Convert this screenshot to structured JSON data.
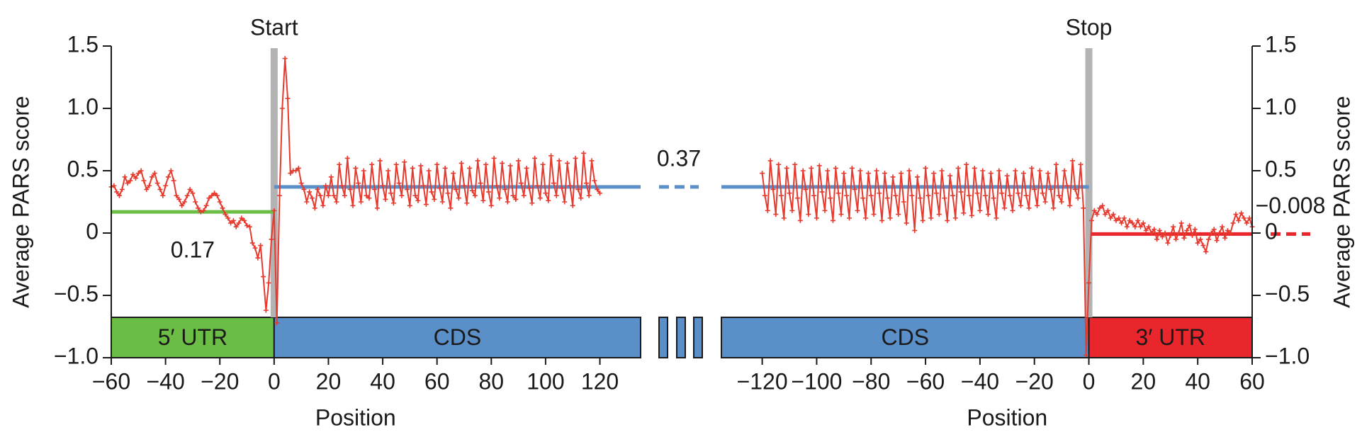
{
  "chart_data": [
    {
      "type": "line",
      "xlabel": "Position",
      "ylabel": "Average PARS score",
      "y_axis_side": "left",
      "color": "#e63a2e",
      "marker": {
        "x": 0,
        "label": "Start"
      },
      "xlim": [
        -60,
        135
      ],
      "ylim": [
        -1.0,
        1.5
      ],
      "xticks": [
        {
          "value": -60,
          "label": "−60"
        },
        {
          "value": -40,
          "label": "−40"
        },
        {
          "value": -20,
          "label": "−20"
        },
        0,
        20,
        40,
        60,
        80,
        100,
        120
      ],
      "yticks": [
        {
          "value": -1.0,
          "label": "−1.0"
        },
        {
          "value": -0.5,
          "label": "−0.5"
        },
        0,
        0.5,
        {
          "value": 1.0,
          "label": "1.0"
        },
        1.5
      ],
      "regions": [
        {
          "label": "5′ UTR",
          "color": "#6cbd45",
          "span": [
            -60,
            0
          ]
        },
        {
          "label": "CDS",
          "color": "#5b8fc7",
          "span": [
            0,
            135
          ]
        }
      ],
      "averages": [
        {
          "value": 0.17,
          "label": "0.17",
          "color": "#6cbd45",
          "span": [
            -60,
            0
          ]
        },
        {
          "value": 0.37,
          "label": "0.37",
          "color": "#5b8fc7",
          "span": [
            0,
            135
          ]
        }
      ],
      "x": [
        -60,
        -59,
        -58,
        -57,
        -56,
        -55,
        -54,
        -53,
        -52,
        -51,
        -50,
        -49,
        -48,
        -47,
        -46,
        -45,
        -44,
        -43,
        -42,
        -41,
        -40,
        -39,
        -38,
        -37,
        -36,
        -35,
        -34,
        -33,
        -32,
        -31,
        -30,
        -29,
        -28,
        -27,
        -26,
        -25,
        -24,
        -23,
        -22,
        -21,
        -20,
        -19,
        -18,
        -17,
        -16,
        -15,
        -14,
        -13,
        -12,
        -11,
        -10,
        -9,
        -8,
        -7,
        -6,
        -5,
        -4,
        -3,
        -2,
        -1,
        0,
        1,
        2,
        3,
        4,
        5,
        6,
        7,
        8,
        9,
        10,
        11,
        12,
        13,
        14,
        15,
        16,
        17,
        18,
        19,
        20,
        21,
        22,
        23,
        24,
        25,
        26,
        27,
        28,
        29,
        30,
        31,
        32,
        33,
        34,
        35,
        36,
        37,
        38,
        39,
        40,
        41,
        42,
        43,
        44,
        45,
        46,
        47,
        48,
        49,
        50,
        51,
        52,
        53,
        54,
        55,
        56,
        57,
        58,
        59,
        60,
        61,
        62,
        63,
        64,
        65,
        66,
        67,
        68,
        69,
        70,
        71,
        72,
        73,
        74,
        75,
        76,
        77,
        78,
        79,
        80,
        81,
        82,
        83,
        84,
        85,
        86,
        87,
        88,
        89,
        90,
        91,
        92,
        93,
        94,
        95,
        96,
        97,
        98,
        99,
        100,
        101,
        102,
        103,
        104,
        105,
        106,
        107,
        108,
        109,
        110,
        111,
        112,
        113,
        114,
        115,
        116,
        117,
        118,
        119,
        120
      ],
      "values": [
        0.37,
        0.38,
        0.33,
        0.3,
        0.35,
        0.45,
        0.4,
        0.42,
        0.47,
        0.44,
        0.48,
        0.5,
        0.42,
        0.35,
        0.38,
        0.45,
        0.48,
        0.4,
        0.35,
        0.3,
        0.38,
        0.45,
        0.5,
        0.42,
        0.3,
        0.27,
        0.22,
        0.25,
        0.3,
        0.35,
        0.32,
        0.25,
        0.2,
        0.17,
        0.18,
        0.22,
        0.28,
        0.3,
        0.32,
        0.3,
        0.25,
        0.2,
        0.15,
        0.12,
        0.08,
        0.1,
        0.05,
        0.08,
        0.12,
        0.1,
        0.06,
        0.05,
        -0.08,
        -0.12,
        -0.2,
        -0.1,
        -0.35,
        -0.62,
        -0.4,
        -0.05,
        0.18,
        -0.72,
        0.3,
        1.0,
        1.4,
        1.08,
        0.48,
        0.5,
        0.5,
        0.52,
        0.4,
        0.35,
        0.25,
        0.33,
        0.28,
        0.2,
        0.35,
        0.3,
        0.22,
        0.38,
        0.3,
        0.45,
        0.3,
        0.25,
        0.55,
        0.38,
        0.3,
        0.6,
        0.35,
        0.22,
        0.52,
        0.4,
        0.25,
        0.5,
        0.3,
        0.28,
        0.55,
        0.35,
        0.2,
        0.58,
        0.38,
        0.27,
        0.5,
        0.32,
        0.24,
        0.55,
        0.4,
        0.3,
        0.57,
        0.35,
        0.22,
        0.52,
        0.3,
        0.26,
        0.54,
        0.38,
        0.23,
        0.5,
        0.33,
        0.27,
        0.55,
        0.36,
        0.25,
        0.52,
        0.32,
        0.2,
        0.48,
        0.35,
        0.28,
        0.56,
        0.38,
        0.24,
        0.52,
        0.34,
        0.3,
        0.58,
        0.4,
        0.26,
        0.55,
        0.33,
        0.22,
        0.6,
        0.38,
        0.28,
        0.56,
        0.35,
        0.25,
        0.54,
        0.3,
        0.27,
        0.58,
        0.4,
        0.3,
        0.52,
        0.36,
        0.24,
        0.6,
        0.38,
        0.28,
        0.55,
        0.32,
        0.26,
        0.62,
        0.4,
        0.3,
        0.58,
        0.36,
        0.25,
        0.56,
        0.38,
        0.22,
        0.6,
        0.35,
        0.28,
        0.64,
        0.4,
        0.3,
        0.58,
        0.42,
        0.35,
        0.32
      ]
    },
    {
      "type": "line",
      "xlabel": "Position",
      "ylabel": "Average PARS score",
      "y_axis_side": "right",
      "color": "#e63a2e",
      "marker": {
        "x": 0,
        "label": "Stop"
      },
      "xlim": [
        -135,
        60
      ],
      "ylim": [
        -1.0,
        1.5
      ],
      "xticks": [
        {
          "value": -120,
          "label": "−120"
        },
        {
          "value": -100,
          "label": "−100"
        },
        {
          "value": -80,
          "label": "−80"
        },
        {
          "value": -60,
          "label": "−60"
        },
        {
          "value": -40,
          "label": "−40"
        },
        {
          "value": -20,
          "label": "−20"
        },
        0,
        20,
        40,
        60
      ],
      "yticks": [
        {
          "value": -1.0,
          "label": "−1.0"
        },
        {
          "value": -0.5,
          "label": "−0.5"
        },
        0,
        0.5,
        {
          "value": 1.0,
          "label": "1.0"
        },
        1.5
      ],
      "regions": [
        {
          "label": "CDS",
          "color": "#5b8fc7",
          "span": [
            -135,
            0
          ]
        },
        {
          "label": "3′ UTR",
          "color": "#e8262b",
          "span": [
            0,
            60
          ]
        }
      ],
      "averages": [
        {
          "value": 0.37,
          "color": "#5b8fc7",
          "span": [
            -135,
            0
          ]
        },
        {
          "value": -0.008,
          "label": "−0.008",
          "color": "#e8262b",
          "span": [
            1,
            60
          ]
        }
      ],
      "x": [
        -120,
        -119,
        -118,
        -117,
        -116,
        -115,
        -114,
        -113,
        -112,
        -111,
        -110,
        -109,
        -108,
        -107,
        -106,
        -105,
        -104,
        -103,
        -102,
        -101,
        -100,
        -99,
        -98,
        -97,
        -96,
        -95,
        -94,
        -93,
        -92,
        -91,
        -90,
        -89,
        -88,
        -87,
        -86,
        -85,
        -84,
        -83,
        -82,
        -81,
        -80,
        -79,
        -78,
        -77,
        -76,
        -75,
        -74,
        -73,
        -72,
        -71,
        -70,
        -69,
        -68,
        -67,
        -66,
        -65,
        -64,
        -63,
        -62,
        -61,
        -60,
        -59,
        -58,
        -57,
        -56,
        -55,
        -54,
        -53,
        -52,
        -51,
        -50,
        -49,
        -48,
        -47,
        -46,
        -45,
        -44,
        -43,
        -42,
        -41,
        -40,
        -39,
        -38,
        -37,
        -36,
        -35,
        -34,
        -33,
        -32,
        -31,
        -30,
        -29,
        -28,
        -27,
        -26,
        -25,
        -24,
        -23,
        -22,
        -21,
        -20,
        -19,
        -18,
        -17,
        -16,
        -15,
        -14,
        -13,
        -12,
        -11,
        -10,
        -9,
        -8,
        -7,
        -6,
        -5,
        -4,
        -3,
        -2,
        -1,
        0,
        1,
        2,
        3,
        4,
        5,
        6,
        7,
        8,
        9,
        10,
        11,
        12,
        13,
        14,
        15,
        16,
        17,
        18,
        19,
        20,
        21,
        22,
        23,
        24,
        25,
        26,
        27,
        28,
        29,
        30,
        31,
        32,
        33,
        34,
        35,
        36,
        37,
        38,
        39,
        40,
        41,
        42,
        43,
        44,
        45,
        46,
        47,
        48,
        49,
        50,
        51,
        52,
        53,
        54,
        55,
        56,
        57,
        58,
        59,
        60
      ],
      "values": [
        0.48,
        0.3,
        0.18,
        0.58,
        0.35,
        0.15,
        0.55,
        0.3,
        0.12,
        0.52,
        0.32,
        0.18,
        0.55,
        0.28,
        0.1,
        0.5,
        0.35,
        0.15,
        0.52,
        0.3,
        0.12,
        0.54,
        0.33,
        0.18,
        0.5,
        0.28,
        0.1,
        0.52,
        0.32,
        0.15,
        0.48,
        0.3,
        0.12,
        0.52,
        0.35,
        0.18,
        0.5,
        0.28,
        0.12,
        0.48,
        0.3,
        0.15,
        0.5,
        0.32,
        0.1,
        0.48,
        0.28,
        0.12,
        0.45,
        0.3,
        0.15,
        0.48,
        0.25,
        0.08,
        0.5,
        0.3,
        0.02,
        0.45,
        0.28,
        0.1,
        0.52,
        0.3,
        0.12,
        0.48,
        0.32,
        0.15,
        0.5,
        0.28,
        0.1,
        0.46,
        0.3,
        0.12,
        0.52,
        0.33,
        0.16,
        0.55,
        0.3,
        0.14,
        0.52,
        0.32,
        0.18,
        0.5,
        0.3,
        0.15,
        0.48,
        0.28,
        0.12,
        0.5,
        0.32,
        0.2,
        0.46,
        0.3,
        0.18,
        0.5,
        0.32,
        0.22,
        0.48,
        0.3,
        0.2,
        0.52,
        0.35,
        0.22,
        0.5,
        0.32,
        0.25,
        0.48,
        0.35,
        0.2,
        0.55,
        0.3,
        0.25,
        0.5,
        0.38,
        0.22,
        0.58,
        0.35,
        0.28,
        0.55,
        0.2,
        -0.98,
        -0.4,
        0.1,
        0.18,
        0.15,
        0.2,
        0.22,
        0.15,
        0.18,
        0.12,
        0.15,
        0.1,
        0.12,
        0.08,
        0.12,
        0.05,
        0.1,
        0.08,
        0.05,
        0.1,
        0.05,
        0.08,
        0.02,
        0.05,
        0.0,
        0.03,
        -0.05,
        0.02,
        -0.03,
        0.0,
        -0.08,
        -0.02,
        0.05,
        -0.05,
        0.0,
        0.08,
        -0.04,
        0.02,
        0.06,
        -0.02,
        0.03,
        -0.08,
        -0.05,
        -0.1,
        -0.15,
        -0.05,
        0.0,
        0.03,
        -0.06,
        0.0,
        0.05,
        -0.04,
        0.02,
        0.0,
        0.08,
        0.15,
        0.1,
        0.16,
        0.12,
        0.08,
        0.12,
        0.05
      ]
    }
  ]
}
